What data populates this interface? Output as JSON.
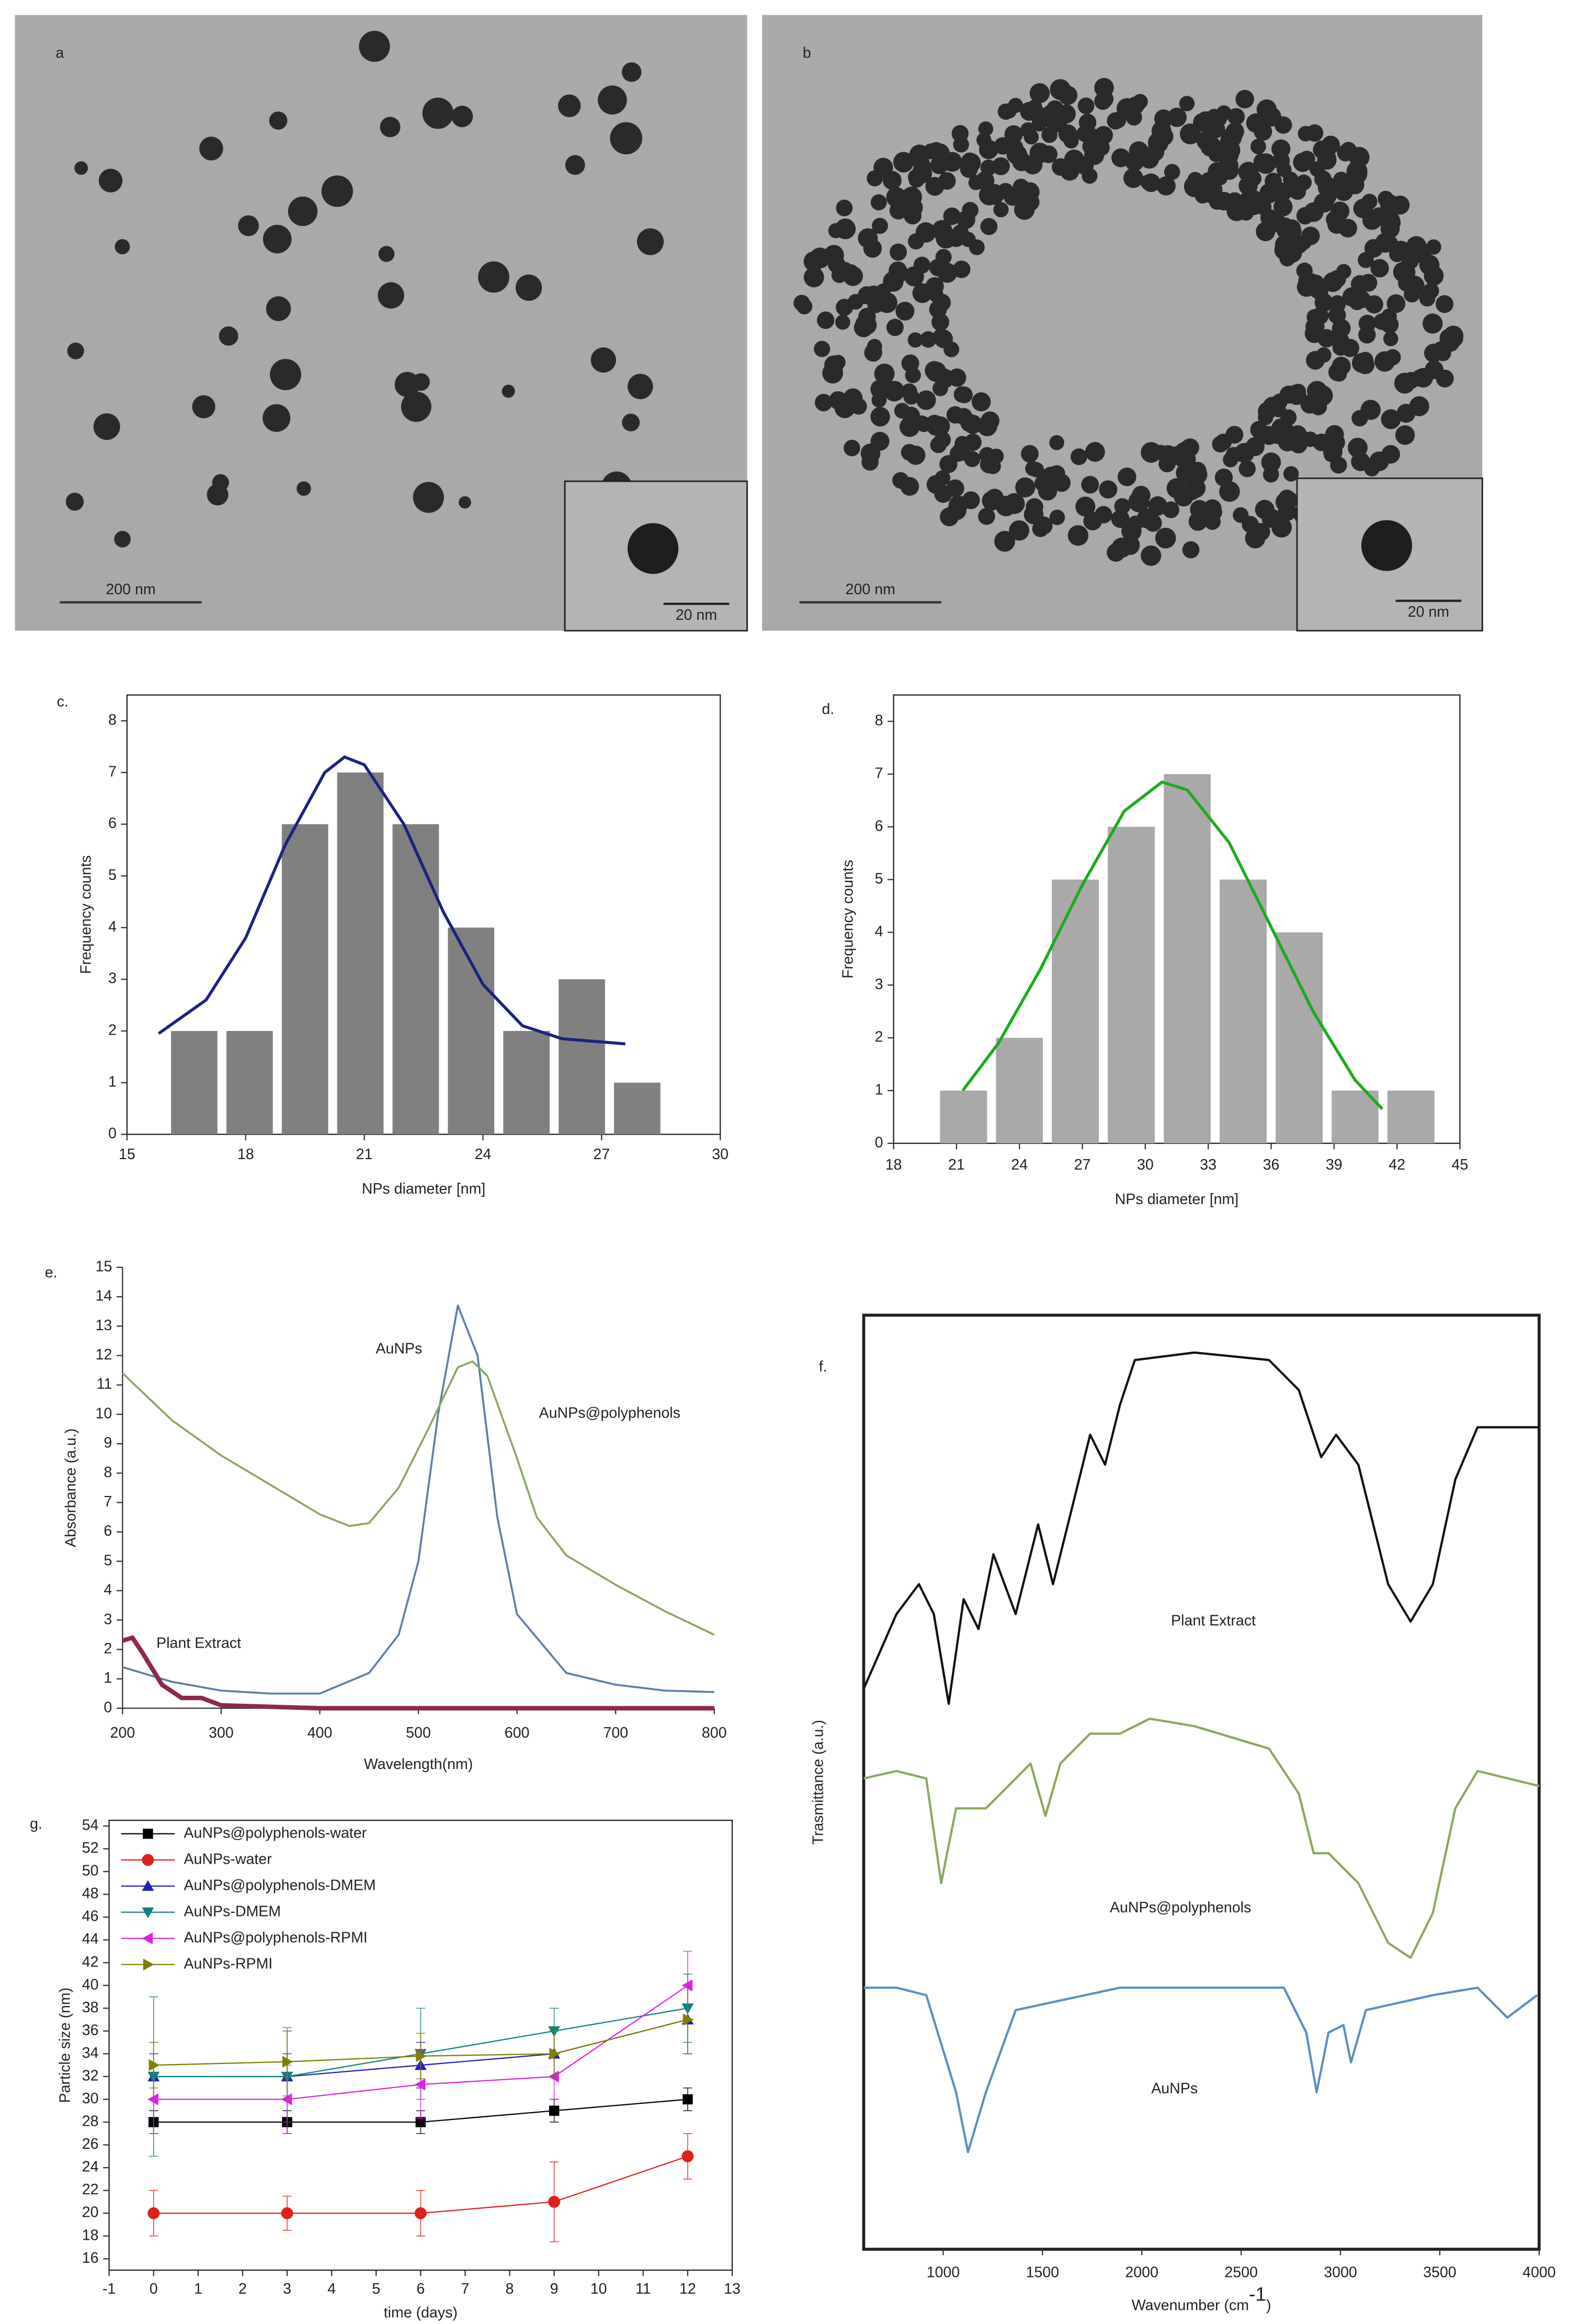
{
  "images": [
    {
      "label": "a",
      "scale_bar": "200 nm",
      "inset_scale_bar": "20 nm"
    },
    {
      "label": "b",
      "scale_bar": "200 nm",
      "inset_scale_bar": "20 nm"
    }
  ],
  "chart_data": [
    {
      "type": "histogram",
      "panel_label": "c.",
      "x_label": "NPs diameter [nm]",
      "y_label": "Frequency counts",
      "bins": [
        16,
        17.4,
        18.8,
        20.2,
        21.6,
        23,
        24.4,
        25.8,
        27.2,
        28.6
      ],
      "counts": [
        2,
        2,
        6,
        7,
        6,
        4,
        2,
        3,
        1
      ],
      "color": "#808080",
      "fit": {
        "color": "#1a237e",
        "x": [
          15.8,
          17,
          18,
          19,
          20,
          20.5,
          21,
          22,
          23,
          24,
          25,
          26,
          27.6
        ],
        "values": [
          1.95,
          2.6,
          3.8,
          5.6,
          7.0,
          7.3,
          7.15,
          6.0,
          4.3,
          2.9,
          2.1,
          1.85,
          1.75
        ]
      },
      "xlim": [
        15,
        30
      ],
      "xticks": [
        15,
        18,
        21,
        24,
        27,
        30
      ],
      "ylim": [
        0,
        8.5
      ],
      "yticks": [
        0,
        1,
        2,
        3,
        4,
        5,
        6,
        7,
        8
      ]
    },
    {
      "type": "histogram",
      "panel_label": "d.",
      "x_label": "NPs diameter [nm]",
      "y_label": "Frequency counts",
      "bins": [
        20,
        22.67,
        25.33,
        28,
        30.67,
        33.33,
        36,
        38.67,
        41.33,
        44
      ],
      "counts": [
        1,
        2,
        5,
        6,
        7,
        5,
        4,
        1,
        1
      ],
      "color": "#a9a9a9",
      "fit": {
        "color": "#1faa1f",
        "x": [
          21.3,
          23,
          25,
          27,
          29,
          30.8,
          32,
          34,
          36,
          38,
          40,
          41.3
        ],
        "values": [
          1.0,
          1.9,
          3.3,
          4.9,
          6.3,
          6.85,
          6.7,
          5.7,
          4.1,
          2.5,
          1.2,
          0.65
        ]
      },
      "xlim": [
        18,
        45
      ],
      "xticks": [
        18,
        21,
        24,
        27,
        30,
        33,
        36,
        39,
        42,
        45
      ],
      "ylim": [
        0,
        8.5
      ],
      "yticks": [
        0,
        1,
        2,
        3,
        4,
        5,
        6,
        7,
        8
      ]
    },
    {
      "type": "line",
      "panel_label": "e.",
      "x_label": "Wavelength(nm)",
      "y_label": "Absorbance (a.u.)",
      "series": [
        {
          "name": "AuNPs",
          "color": "#5b7fa6",
          "width": 1.3,
          "x": [
            200,
            250,
            300,
            350,
            400,
            450,
            480,
            500,
            520,
            540,
            560,
            580,
            600,
            650,
            700,
            750,
            800
          ],
          "values": [
            1.4,
            0.9,
            0.6,
            0.5,
            0.5,
            1.2,
            2.5,
            5,
            10,
            13.7,
            12,
            6.5,
            3.2,
            1.2,
            0.8,
            0.6,
            0.55
          ]
        },
        {
          "name": "AuNPs@polyphenols",
          "color": "#8aa860",
          "width": 1.3,
          "x": [
            200,
            250,
            300,
            350,
            400,
            430,
            450,
            480,
            510,
            540,
            555,
            570,
            600,
            620,
            650,
            700,
            750,
            800
          ],
          "values": [
            11.4,
            9.8,
            8.6,
            7.6,
            6.6,
            6.2,
            6.3,
            7.5,
            9.5,
            11.6,
            11.8,
            11.3,
            8.5,
            6.5,
            5.2,
            4.2,
            3.3,
            2.5
          ]
        },
        {
          "name": "Plant Extract",
          "color": "#8b2a4a",
          "width": 3,
          "x": [
            200,
            210,
            220,
            240,
            260,
            280,
            300,
            350,
            400,
            500,
            600,
            700,
            800
          ],
          "values": [
            2.3,
            2.4,
            1.9,
            0.8,
            0.35,
            0.35,
            0.1,
            0.05,
            0,
            0,
            0,
            0,
            0
          ]
        }
      ],
      "xlim": [
        200,
        800
      ],
      "xticks": [
        200,
        300,
        400,
        500,
        600,
        700,
        800
      ],
      "ylim": [
        0,
        15
      ],
      "yticks": [
        0,
        1,
        2,
        3,
        4,
        5,
        6,
        7,
        8,
        9,
        10,
        11,
        12,
        13,
        14,
        15
      ]
    },
    {
      "type": "line",
      "panel_label": "f.",
      "x_label": [
        "Wavenumber (cm",
        "-1",
        ")"
      ],
      "y_label": "Trasmittance (a.u.)",
      "series": [
        {
          "name": "Plant Extract",
          "color": "#111111",
          "width": 1.5,
          "x": [
            600,
            765,
            878,
            953,
            1028,
            1103,
            1178,
            1253,
            1365,
            1478,
            1553,
            1628,
            1740,
            1815,
            1890,
            1965,
            2265,
            2640,
            2790,
            2903,
            2978,
            3090,
            3240,
            3353,
            3465,
            3578,
            3690,
            4000
          ],
          "values": [
            60,
            68,
            71.2,
            68,
            58.4,
            69.6,
            66.4,
            74.4,
            68,
            77.6,
            71.2,
            77.6,
            87.2,
            84,
            90.4,
            95.2,
            96,
            95.2,
            92,
            84.8,
            87.2,
            84,
            71.2,
            67.2,
            71.2,
            82.4,
            88,
            88
          ]
        },
        {
          "name": "AuNPs@polyphenols",
          "color": "#8aa860",
          "width": 1.5,
          "x": [
            600,
            765,
            915,
            990,
            1065,
            1215,
            1440,
            1515,
            1590,
            1740,
            1890,
            2040,
            2265,
            2640,
            2790,
            2865,
            2940,
            3090,
            3240,
            3353,
            3465,
            3578,
            3690,
            4000
          ],
          "values": [
            50.4,
            51.2,
            50.4,
            39.2,
            47.2,
            47.2,
            52,
            46.4,
            52,
            55.2,
            55.2,
            56.8,
            56,
            53.6,
            48.8,
            42.4,
            42.4,
            39.2,
            32.8,
            31.2,
            36,
            47.2,
            51.2,
            49.6
          ]
        },
        {
          "name": "AuNPs",
          "color": "#5b8fc0",
          "width": 1.5,
          "x": [
            600,
            765,
            915,
            1065,
            1125,
            1215,
            1365,
            1890,
            2715,
            2828,
            2880,
            2940,
            3015,
            3053,
            3128,
            3465,
            3690,
            3840,
            3990
          ],
          "values": [
            28,
            28,
            27.2,
            16.8,
            10.4,
            16.8,
            25.6,
            28,
            28,
            23.2,
            16.8,
            23.2,
            24,
            20,
            25.6,
            27.2,
            28,
            24.8,
            27.2
          ]
        }
      ],
      "xlim": [
        600,
        4000
      ],
      "xticks": [
        1000,
        1500,
        2000,
        2500,
        3000,
        3500,
        4000
      ],
      "ylim": [
        0,
        100
      ]
    },
    {
      "type": "errorline",
      "panel_label": "g.",
      "x_label": "time (days)",
      "y_label": "Particle size (nm)",
      "legend": "upper left",
      "x": [
        0,
        3,
        6,
        9,
        12
      ],
      "series": [
        {
          "name": "AuNPs@polyphenols-water",
          "color": "#000000",
          "marker": "square",
          "values": [
            28,
            28,
            28,
            29,
            30
          ],
          "errors": [
            1,
            1,
            1,
            1,
            1
          ]
        },
        {
          "name": "AuNPs-water",
          "color": "#e0201b",
          "marker": "circle",
          "values": [
            20,
            20,
            20,
            21,
            25
          ],
          "errors": [
            2,
            1.5,
            2,
            3.5,
            2
          ]
        },
        {
          "name": "AuNPs@polyphenols-DMEM",
          "color": "#1f1fbf",
          "marker": "triangle-up",
          "values": [
            32,
            32,
            33,
            34,
            37
          ],
          "errors": [
            2,
            2,
            2,
            2,
            3
          ]
        },
        {
          "name": "AuNPs-DMEM",
          "color": "#108080",
          "marker": "triangle-down",
          "values": [
            32,
            32,
            34,
            36,
            38
          ],
          "errors": [
            7,
            4,
            4,
            2,
            3
          ]
        },
        {
          "name": "AuNPs@polyphenols-RPMI",
          "color": "#e020e0",
          "marker": "triangle-left",
          "values": [
            30,
            30,
            31.3,
            32,
            40
          ],
          "errors": [
            3,
            3,
            3,
            2,
            3
          ]
        },
        {
          "name": "AuNPs-RPMI",
          "color": "#808000",
          "marker": "triangle-right",
          "values": [
            33,
            33.3,
            33.8,
            34,
            37
          ],
          "errors": [
            2,
            3,
            2,
            2,
            3
          ]
        }
      ],
      "xlim": [
        -1,
        13
      ],
      "xticks": [
        -1,
        0,
        1,
        2,
        3,
        4,
        5,
        6,
        7,
        8,
        9,
        10,
        11,
        12,
        13
      ],
      "ylim": [
        15,
        54.5
      ],
      "yticks": [
        16,
        18,
        20,
        22,
        24,
        26,
        28,
        30,
        32,
        34,
        36,
        38,
        40,
        42,
        44,
        46,
        48,
        50,
        52,
        54
      ]
    }
  ]
}
